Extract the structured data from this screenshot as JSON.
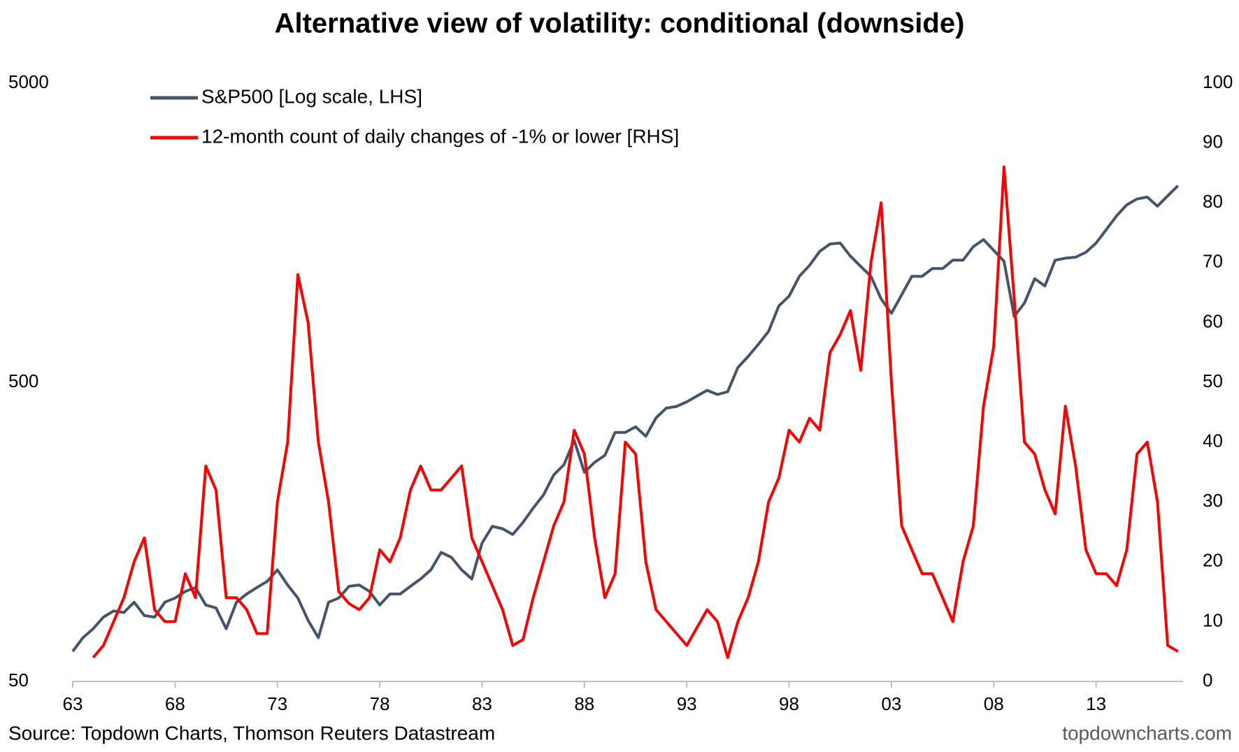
{
  "chart_data": {
    "type": "line",
    "title": "Alternative view of volatility: conditional (downside)",
    "source": "Source: Topdown Charts, Thomson Reuters Datastream",
    "watermark": "topdowncharts.com",
    "legend_position": "upper left",
    "x": [
      1963,
      1963.5,
      1964,
      1964.5,
      1965,
      1965.5,
      1966,
      1966.5,
      1967,
      1967.5,
      1968,
      1968.5,
      1969,
      1969.5,
      1970,
      1970.5,
      1971,
      1971.5,
      1972,
      1972.5,
      1973,
      1973.5,
      1974,
      1974.5,
      1975,
      1975.5,
      1976,
      1976.5,
      1977,
      1977.5,
      1978,
      1978.5,
      1979,
      1979.5,
      1980,
      1980.5,
      1981,
      1981.5,
      1982,
      1982.5,
      1983,
      1983.5,
      1984,
      1984.5,
      1985,
      1985.5,
      1986,
      1986.5,
      1987,
      1987.5,
      1988,
      1988.5,
      1989,
      1989.5,
      1990,
      1990.5,
      1991,
      1991.5,
      1992,
      1992.5,
      1993,
      1993.5,
      1994,
      1994.5,
      1995,
      1995.5,
      1996,
      1996.5,
      1997,
      1997.5,
      1998,
      1998.5,
      1999,
      1999.5,
      2000,
      2000.5,
      2001,
      2001.5,
      2002,
      2002.5,
      2003,
      2003.5,
      2004,
      2004.5,
      2005,
      2005.5,
      2006,
      2006.5,
      2007,
      2007.5,
      2008,
      2008.5,
      2009,
      2009.5,
      2010,
      2010.5,
      2011,
      2011.5,
      2012,
      2012.5,
      2013,
      2013.5,
      2014,
      2014.5,
      2015,
      2015.5,
      2016,
      2016.5,
      2017
    ],
    "xlim": [
      1963,
      2017.25
    ],
    "xticks": [
      {
        "value": 1963,
        "label": "63"
      },
      {
        "value": 1968,
        "label": "68"
      },
      {
        "value": 1973,
        "label": "73"
      },
      {
        "value": 1978,
        "label": "78"
      },
      {
        "value": 1983,
        "label": "83"
      },
      {
        "value": 1988,
        "label": "88"
      },
      {
        "value": 1993,
        "label": "93"
      },
      {
        "value": 1998,
        "label": "98"
      },
      {
        "value": 2003,
        "label": "03"
      },
      {
        "value": 2008,
        "label": "08"
      },
      {
        "value": 2013,
        "label": "13"
      }
    ],
    "yscale": "log",
    "ylim": [
      50,
      5000
    ],
    "yticks": [
      50,
      500,
      5000
    ],
    "y2lim": [
      0,
      100
    ],
    "y2ticks": [
      0,
      10,
      20,
      30,
      40,
      50,
      60,
      70,
      80,
      90,
      100
    ],
    "series": [
      {
        "name": "S&P500 [Log scale, LHS]",
        "color": "#44546a",
        "axis": "y",
        "values": [
          63,
          70,
          75,
          82,
          86,
          85,
          92,
          83,
          82,
          92,
          95,
          100,
          103,
          90,
          88,
          75,
          92,
          98,
          103,
          108,
          118,
          105,
          95,
          80,
          70,
          92,
          95,
          104,
          105,
          100,
          90,
          98,
          98,
          104,
          110,
          118,
          135,
          130,
          118,
          110,
          145,
          165,
          162,
          155,
          170,
          190,
          210,
          245,
          265,
          320,
          250,
          270,
          285,
          340,
          340,
          355,
          330,
          380,
          410,
          415,
          430,
          450,
          470,
          455,
          465,
          560,
          610,
          670,
          740,
          900,
          970,
          1130,
          1230,
          1370,
          1450,
          1460,
          1320,
          1220,
          1130,
          950,
          850,
          980,
          1130,
          1130,
          1200,
          1200,
          1280,
          1280,
          1420,
          1500,
          1380,
          1270,
          830,
          920,
          1110,
          1050,
          1280,
          1300,
          1310,
          1360,
          1460,
          1620,
          1800,
          1960,
          2050,
          2080,
          1940,
          2100,
          2270
        ]
      },
      {
        "name": "12-month count of daily changes of -1% or lower [RHS]",
        "color": "#ff0000",
        "axis": "y2",
        "values": [
          null,
          null,
          4,
          6,
          10,
          14,
          20,
          24,
          12,
          10,
          10,
          18,
          14,
          36,
          32,
          14,
          14,
          12,
          8,
          8,
          30,
          40,
          68,
          60,
          40,
          30,
          15,
          13,
          12,
          14,
          22,
          20,
          24,
          32,
          36,
          32,
          32,
          34,
          36,
          24,
          20,
          16,
          12,
          6,
          7,
          14,
          20,
          26,
          30,
          42,
          38,
          24,
          14,
          18,
          40,
          38,
          20,
          12,
          10,
          8,
          6,
          9,
          12,
          10,
          4,
          10,
          14,
          20,
          30,
          34,
          42,
          40,
          44,
          42,
          55,
          58,
          62,
          52,
          70,
          80,
          50,
          26,
          22,
          18,
          18,
          14,
          10,
          20,
          26,
          46,
          56,
          86,
          64,
          40,
          38,
          32,
          28,
          46,
          36,
          22,
          18,
          18,
          16,
          22,
          38,
          40,
          30,
          6,
          5
        ]
      }
    ]
  }
}
